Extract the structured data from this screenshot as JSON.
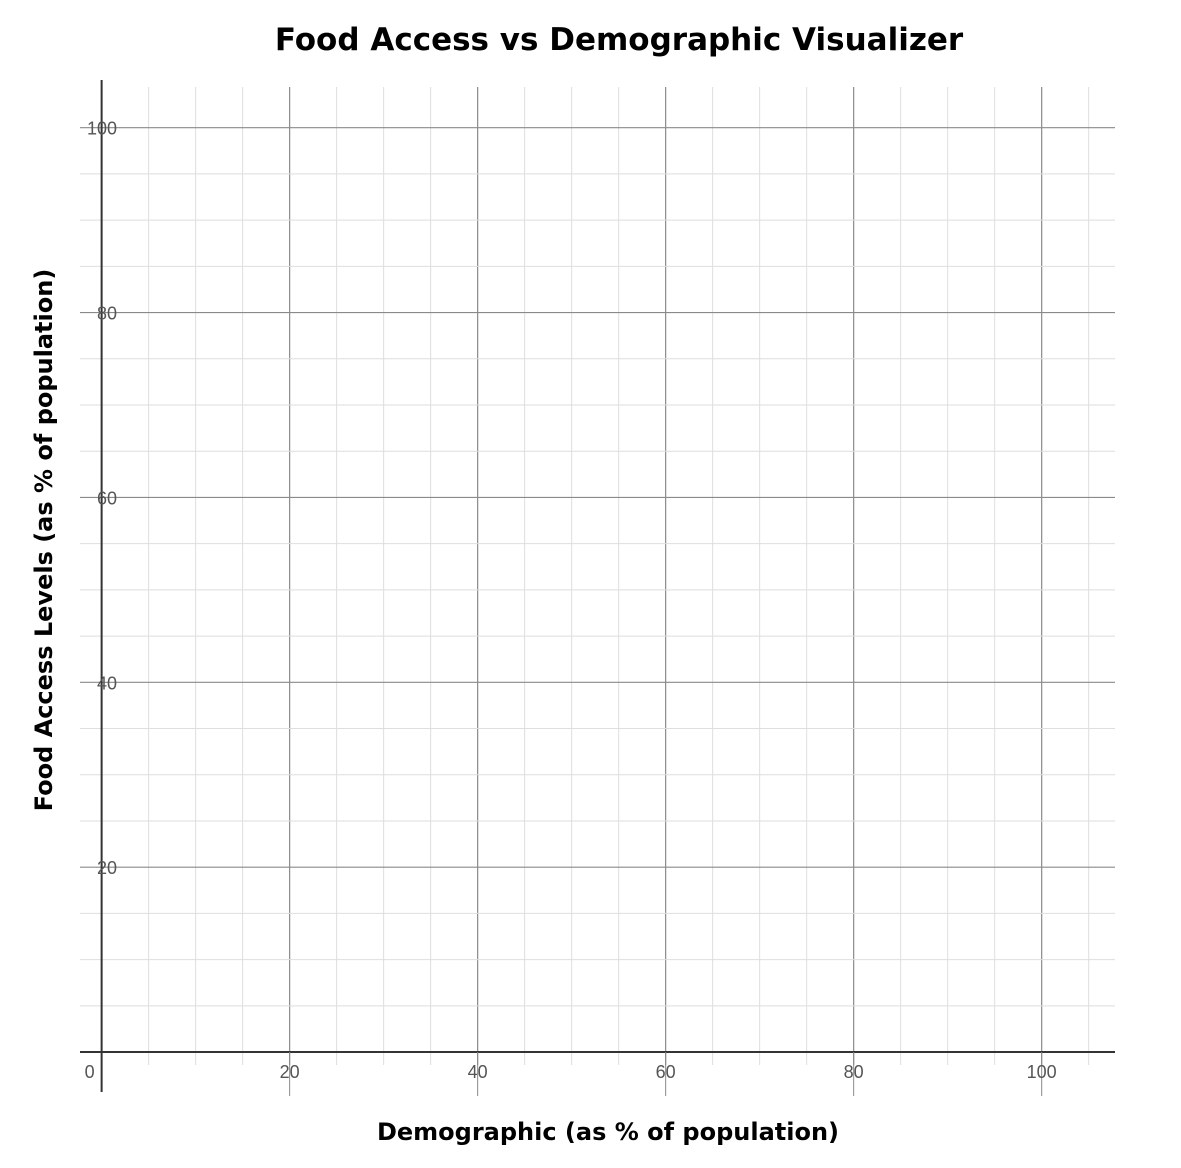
{
  "chart_data": {
    "type": "scatter",
    "title": "Food Access vs Demographic Visualizer",
    "xlabel": "Demographic (as % of population)",
    "ylabel": "Food Access Levels (as % of population)",
    "xlim": [
      -2.3,
      107.8
    ],
    "ylim": [
      -1.4,
      104.4
    ],
    "x_ticks": [
      0,
      20,
      40,
      60,
      80,
      100
    ],
    "y_ticks": [
      20,
      40,
      60,
      80,
      100
    ],
    "x_tick_labels": [
      "0",
      "20",
      "40",
      "60",
      "80",
      "100"
    ],
    "y_tick_labels": [
      "20",
      "40",
      "60",
      "80",
      "100"
    ],
    "minor_step": 5,
    "grid": true,
    "series": [],
    "colors": {
      "major_grid": "#8a8a8a",
      "minor_grid": "#dedede",
      "axis": "#333333"
    }
  }
}
